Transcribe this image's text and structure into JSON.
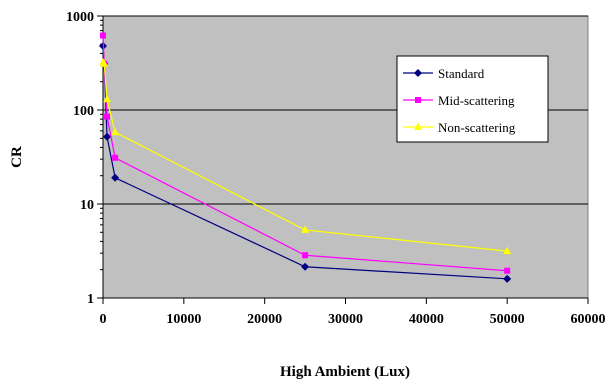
{
  "chart_data": {
    "type": "line",
    "title": "",
    "xlabel": "High Ambient (Lux)",
    "ylabel": "CR",
    "xlim": [
      0,
      60000
    ],
    "ylim": [
      1,
      1000
    ],
    "yscale": "log",
    "x_ticks": [
      "0",
      "10000",
      "20000",
      "30000",
      "40000",
      "50000",
      "60000"
    ],
    "y_ticks": [
      "1",
      "10",
      "100",
      "1000"
    ],
    "grid": "horizontal major gridlines",
    "plot_background": "#c0c0c0",
    "legend_position": "upper-right inside plot",
    "series": [
      {
        "name": "Standard",
        "color": "#000080",
        "marker": "diamond",
        "x": [
          0,
          150,
          500,
          1500,
          25000,
          50000
        ],
        "y": [
          480,
          310,
          52,
          19,
          2.15,
          1.6
        ]
      },
      {
        "name": "Mid-scattering",
        "color": "#ff00ff",
        "marker": "square",
        "x": [
          0,
          150,
          500,
          1500,
          25000,
          50000
        ],
        "y": [
          620,
          310,
          85,
          31,
          2.85,
          1.95
        ]
      },
      {
        "name": "Non-scattering",
        "color": "#ffff00",
        "marker": "triangle",
        "x": [
          0,
          150,
          500,
          1500,
          25000,
          50000
        ],
        "y": [
          320,
          310,
          130,
          58,
          5.3,
          3.15
        ]
      }
    ]
  }
}
